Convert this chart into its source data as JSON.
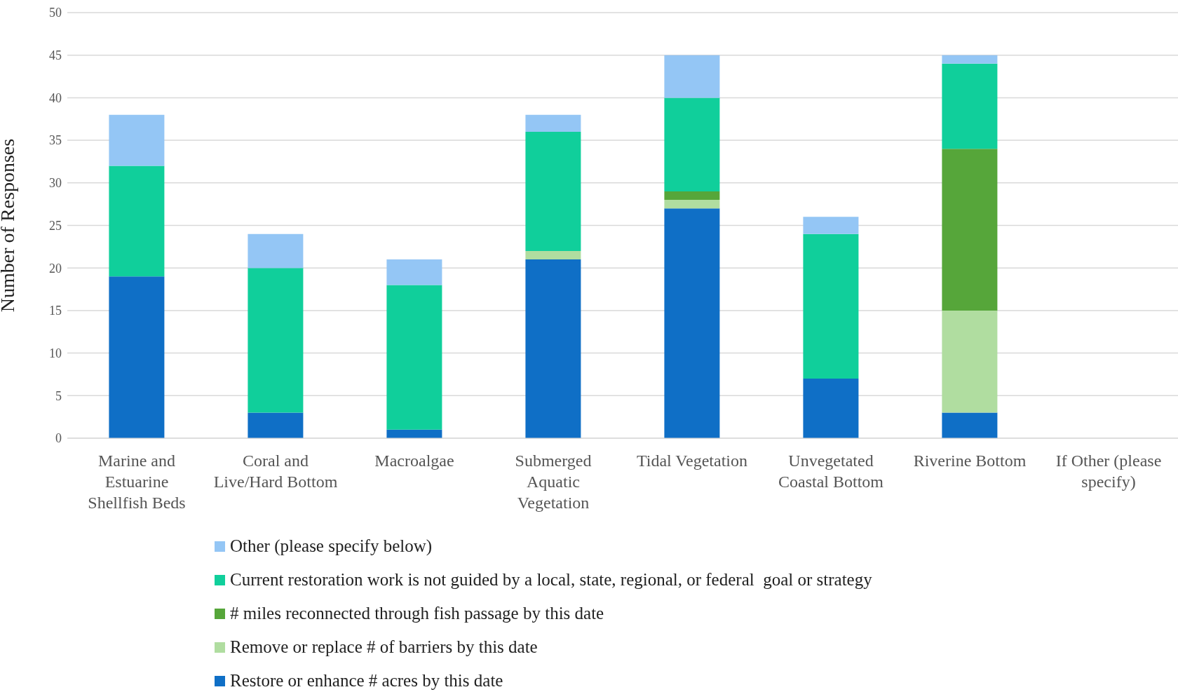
{
  "chart_data": {
    "type": "bar",
    "stacked": true,
    "ylabel": "Number of Responses",
    "categories": [
      "Marine and Estuarine Shellfish Beds",
      "Coral and Live/Hard Bottom",
      "Macroalgae",
      "Submerged Aquatic Vegetation",
      "Tidal Vegetation",
      "Unvegetated Coastal Bottom",
      "Riverine Bottom",
      "If Other (please specify)"
    ],
    "series": [
      {
        "name": "Restore or enhance # acres by this date",
        "color": "#0f6fc6",
        "values": [
          19,
          3,
          1,
          21,
          27,
          7,
          3,
          0
        ]
      },
      {
        "name": "Remove or replace # of barriers by this date",
        "color": "#b0dda0",
        "values": [
          0,
          0,
          0,
          1,
          1,
          0,
          12,
          0
        ]
      },
      {
        "name": "# miles reconnected through fish passage by this date",
        "color": "#56a63a",
        "values": [
          0,
          0,
          0,
          0,
          1,
          0,
          19,
          0
        ]
      },
      {
        "name": "Current restoration work is not guided by a local, state, regional, or federal  goal or strategy",
        "color": "#10cf9b",
        "values": [
          13,
          17,
          17,
          14,
          11,
          17,
          10,
          0
        ]
      },
      {
        "name": "Other (please specify below)",
        "color": "#94c6f5",
        "values": [
          6,
          4,
          3,
          2,
          5,
          2,
          1,
          0
        ]
      }
    ],
    "ylim": [
      0,
      50
    ],
    "yticks": [
      0,
      5,
      10,
      15,
      20,
      25,
      30,
      35,
      40,
      45,
      50
    ],
    "grid": "y",
    "legend": "bottom"
  }
}
